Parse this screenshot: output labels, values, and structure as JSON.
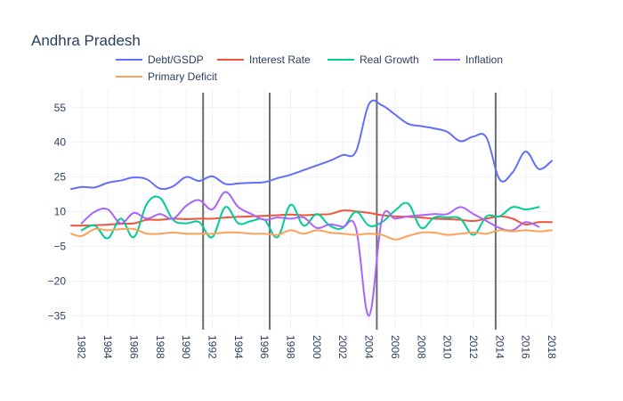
{
  "chart_data": {
    "type": "line",
    "title": "Andhra Pradesh",
    "xlabel": "",
    "ylabel": "",
    "xlim": [
      1981.2,
      2018.0
    ],
    "ylim": [
      -41,
      63
    ],
    "x_ticks": [
      1982,
      1984,
      1986,
      1988,
      1990,
      1992,
      1994,
      1996,
      1998,
      2000,
      2002,
      2004,
      2006,
      2008,
      2010,
      2012,
      2014,
      2016,
      2018
    ],
    "y_ticks": [
      55,
      40,
      25,
      10,
      -5,
      -20,
      -35
    ],
    "x_tick_labels": [
      "1982",
      "1984",
      "1986",
      "1988",
      "1990",
      "1992",
      "1994",
      "1996",
      "1998",
      "2000",
      "2002",
      "2004",
      "2006",
      "2008",
      "2010",
      "2012",
      "2014",
      "2016",
      "2018"
    ],
    "y_tick_labels": [
      "55",
      "40",
      "25",
      "10",
      "−5",
      "−20",
      "−35"
    ],
    "grid": true,
    "legend_position": "top",
    "vertical_lines": [
      1991.3,
      1996.4,
      2004.6,
      2013.7
    ],
    "series": [
      {
        "name": "Debt/GSDP",
        "color": "#636efa",
        "x": [
          1981.2,
          1982,
          1983,
          1984,
          1985,
          1986,
          1987,
          1988,
          1989,
          1990,
          1991,
          1992,
          1993,
          1994,
          1995,
          1996,
          1997,
          1998,
          1999,
          2000,
          2001,
          2002,
          2003,
          2004,
          2005,
          2006,
          2007,
          2008,
          2009,
          2010,
          2011,
          2012,
          2013,
          2014,
          2015,
          2016,
          2017,
          2018
        ],
        "y": [
          19.8,
          20.7,
          20.5,
          22.5,
          23.5,
          24.8,
          24.0,
          20.0,
          21.0,
          25.0,
          23.3,
          25.3,
          22.0,
          22.2,
          22.5,
          22.8,
          24.5,
          26.0,
          28.0,
          30.0,
          32.0,
          34.5,
          36.0,
          56.5,
          56.0,
          52.0,
          48.0,
          47.0,
          46.0,
          44.5,
          40.5,
          42.5,
          42.0,
          24.0,
          27.0,
          36.0,
          28.5,
          32.0
        ]
      },
      {
        "name": "Interest Rate",
        "color": "#ef553b",
        "x": [
          1981.2,
          1982,
          1983,
          1984,
          1985,
          1986,
          1987,
          1988,
          1989,
          1990,
          1991,
          1992,
          1993,
          1994,
          1995,
          1996,
          1997,
          1998,
          1999,
          2000,
          2001,
          2002,
          2003,
          2004,
          2005,
          2006,
          2007,
          2008,
          2009,
          2010,
          2011,
          2012,
          2013,
          2014,
          2015,
          2016,
          2017,
          2018
        ],
        "y": [
          4.0,
          4.0,
          4.2,
          4.4,
          4.8,
          5.0,
          6.5,
          6.5,
          7.0,
          6.8,
          7.0,
          7.0,
          7.5,
          7.8,
          8.0,
          8.2,
          8.5,
          8.8,
          8.5,
          8.8,
          9.0,
          10.5,
          10.2,
          9.5,
          8.5,
          8.0,
          7.8,
          7.5,
          7.0,
          6.8,
          6.5,
          6.0,
          7.0,
          8.0,
          7.0,
          4.5,
          5.5,
          5.5
        ]
      },
      {
        "name": "Real Growth",
        "color": "#00cc96",
        "x": [
          1982,
          1983,
          1984,
          1985,
          1986,
          1987,
          1988,
          1989,
          1990,
          1991,
          1992,
          1993,
          1994,
          1995,
          1996,
          1997,
          1998,
          1999,
          2000,
          2001,
          2002,
          2003,
          2004,
          2005,
          2006,
          2007,
          2008,
          2009,
          2010,
          2011,
          2012,
          2013,
          2014,
          2015,
          2016,
          2017
        ],
        "y": [
          2.0,
          4.0,
          -1.5,
          7.0,
          -1.0,
          13.5,
          16.0,
          6.5,
          5.0,
          5.5,
          -1.0,
          12.0,
          5.0,
          6.0,
          6.5,
          -1.0,
          13.0,
          4.0,
          9.0,
          4.0,
          3.0,
          10.0,
          4.0,
          5.5,
          10.5,
          13.5,
          3.0,
          7.5,
          7.5,
          7.0,
          0.0,
          8.0,
          8.0,
          12.0,
          11.0,
          12.0
        ]
      },
      {
        "name": "Inflation",
        "color": "#ab63fa",
        "x": [
          1982,
          1983,
          1984,
          1985,
          1986,
          1987,
          1988,
          1989,
          1990,
          1991,
          1992,
          1993,
          1994,
          1995,
          1996,
          1997,
          1998,
          1999,
          2000,
          2001,
          2002,
          2003,
          2004,
          2005,
          2006,
          2007,
          2008,
          2009,
          2010,
          2011,
          2012,
          2013,
          2014,
          2015,
          2016,
          2017
        ],
        "y": [
          5.0,
          10.0,
          11.0,
          5.0,
          9.5,
          7.0,
          9.0,
          7.0,
          12.5,
          15.0,
          11.0,
          18.5,
          12.0,
          9.0,
          6.5,
          7.5,
          7.0,
          7.5,
          3.0,
          4.5,
          3.5,
          3.0,
          -35.0,
          7.0,
          7.0,
          8.0,
          8.5,
          9.0,
          9.0,
          12.0,
          9.0,
          6.0,
          3.0,
          2.0,
          5.5,
          3.5
        ]
      },
      {
        "name": "Primary Deficit",
        "color": "#fea15a",
        "x": [
          1981.2,
          1982,
          1983,
          1984,
          1985,
          1986,
          1987,
          1988,
          1989,
          1990,
          1991,
          1992,
          1993,
          1994,
          1995,
          1996,
          1997,
          1998,
          1999,
          2000,
          2001,
          2002,
          2003,
          2004,
          2005,
          2006,
          2007,
          2008,
          2009,
          2010,
          2011,
          2012,
          2013,
          2014,
          2015,
          2016,
          2017,
          2018
        ],
        "y": [
          0.5,
          -0.5,
          2.5,
          2.0,
          2.5,
          2.5,
          0.5,
          0.5,
          1.0,
          0.5,
          0.5,
          0.5,
          1.0,
          1.0,
          0.5,
          0.5,
          0.0,
          2.0,
          0.5,
          2.0,
          1.0,
          0.5,
          0.0,
          0.5,
          0.0,
          -2.0,
          -0.5,
          1.0,
          1.0,
          0.0,
          0.5,
          1.0,
          0.5,
          2.0,
          1.5,
          2.0,
          1.5,
          2.0
        ]
      }
    ]
  }
}
